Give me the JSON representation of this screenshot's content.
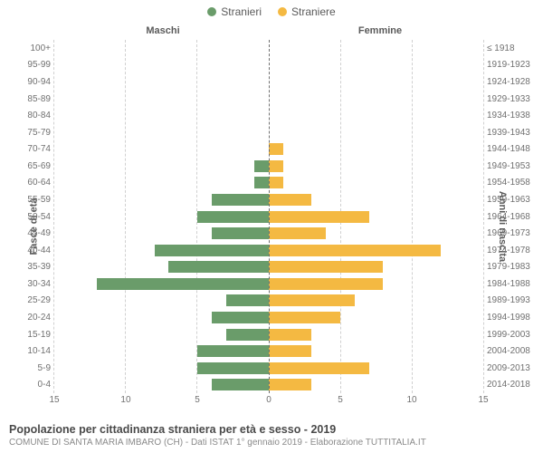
{
  "chart": {
    "type": "population-pyramid",
    "legend": [
      {
        "label": "Stranieri",
        "color": "#6a9c6a"
      },
      {
        "label": "Straniere",
        "color": "#f4b942"
      }
    ],
    "column_headers": {
      "left": "Maschi",
      "right": "Femmine"
    },
    "axis_titles": {
      "left": "Fasce di età",
      "right": "Anni di nascita"
    },
    "colors": {
      "male": "#6a9c6a",
      "female": "#f4b942",
      "grid": "#d0d0d0",
      "center": "#707070",
      "background": "#ffffff",
      "text": "#5a5a5a"
    },
    "xmax": 15,
    "x_ticks": [
      15,
      10,
      5,
      0,
      5,
      10,
      15
    ],
    "bar_height_ratio": 0.7,
    "font": {
      "label": 10,
      "axis_title": 11,
      "legend": 12
    },
    "rows": [
      {
        "age": "100+",
        "cohort": "≤ 1918",
        "m": 0,
        "f": 0
      },
      {
        "age": "95-99",
        "cohort": "1919-1923",
        "m": 0,
        "f": 0
      },
      {
        "age": "90-94",
        "cohort": "1924-1928",
        "m": 0,
        "f": 0
      },
      {
        "age": "85-89",
        "cohort": "1929-1933",
        "m": 0,
        "f": 0
      },
      {
        "age": "80-84",
        "cohort": "1934-1938",
        "m": 0,
        "f": 0
      },
      {
        "age": "75-79",
        "cohort": "1939-1943",
        "m": 0,
        "f": 0
      },
      {
        "age": "70-74",
        "cohort": "1944-1948",
        "m": 0,
        "f": 1
      },
      {
        "age": "65-69",
        "cohort": "1949-1953",
        "m": 1,
        "f": 1
      },
      {
        "age": "60-64",
        "cohort": "1954-1958",
        "m": 1,
        "f": 1
      },
      {
        "age": "55-59",
        "cohort": "1959-1963",
        "m": 4,
        "f": 3
      },
      {
        "age": "50-54",
        "cohort": "1964-1968",
        "m": 5,
        "f": 7
      },
      {
        "age": "45-49",
        "cohort": "1969-1973",
        "m": 4,
        "f": 4
      },
      {
        "age": "40-44",
        "cohort": "1974-1978",
        "m": 8,
        "f": 12
      },
      {
        "age": "35-39",
        "cohort": "1979-1983",
        "m": 7,
        "f": 8
      },
      {
        "age": "30-34",
        "cohort": "1984-1988",
        "m": 12,
        "f": 8
      },
      {
        "age": "25-29",
        "cohort": "1989-1993",
        "m": 3,
        "f": 6
      },
      {
        "age": "20-24",
        "cohort": "1994-1998",
        "m": 4,
        "f": 5
      },
      {
        "age": "15-19",
        "cohort": "1999-2003",
        "m": 3,
        "f": 3
      },
      {
        "age": "10-14",
        "cohort": "2004-2008",
        "m": 5,
        "f": 3
      },
      {
        "age": "5-9",
        "cohort": "2009-2013",
        "m": 5,
        "f": 7
      },
      {
        "age": "0-4",
        "cohort": "2014-2018",
        "m": 4,
        "f": 3
      }
    ],
    "footer": {
      "title": "Popolazione per cittadinanza straniera per età e sesso - 2019",
      "subtitle": "COMUNE DI SANTA MARIA IMBARO (CH) - Dati ISTAT 1° gennaio 2019 - Elaborazione TUTTITALIA.IT"
    }
  }
}
